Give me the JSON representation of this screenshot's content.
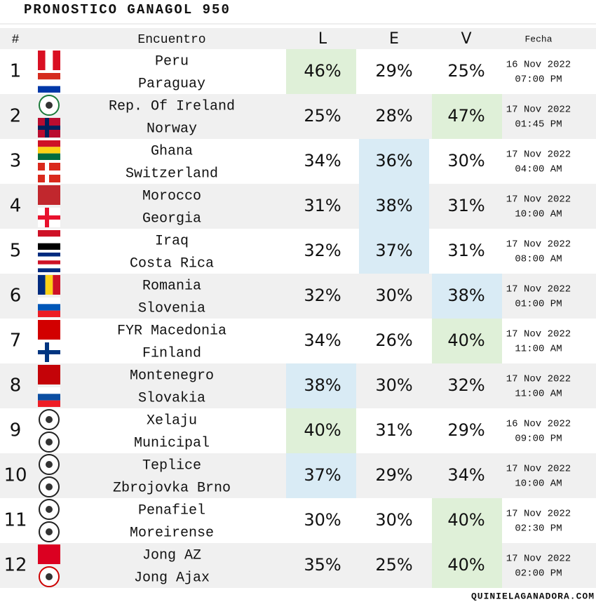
{
  "header": {
    "title": "PRONOSTICO GANAGOL 950"
  },
  "table": {
    "columns": [
      "#",
      "Encuentro",
      "L",
      "E",
      "V",
      "Fecha"
    ],
    "rows": [
      {
        "number": "1",
        "home": "Peru",
        "away": "Paraguay",
        "probs": [
          "46%",
          "29%",
          "25%"
        ],
        "date": "16 Nov 2022",
        "time": "07:00 PM",
        "highlight": {
          "column": 0,
          "color": "#dff0d8"
        }
      },
      {
        "number": "2",
        "home": "Rep. Of Ireland",
        "away": "Norway",
        "probs": [
          "25%",
          "28%",
          "47%"
        ],
        "date": "17 Nov 2022",
        "time": "01:45 PM",
        "highlight": {
          "column": 2,
          "color": "#dff0d8"
        }
      },
      {
        "number": "3",
        "home": "Ghana",
        "away": "Switzerland",
        "probs": [
          "34%",
          "36%",
          "30%"
        ],
        "date": "17 Nov 2022",
        "time": "04:00 AM",
        "highlight": {
          "column": 1,
          "color": "#d9ebf5"
        }
      },
      {
        "number": "4",
        "home": "Morocco",
        "away": "Georgia",
        "probs": [
          "31%",
          "38%",
          "31%"
        ],
        "date": "17 Nov 2022",
        "time": "10:00 AM",
        "highlight": {
          "column": 1,
          "color": "#d9ebf5"
        }
      },
      {
        "number": "5",
        "home": "Iraq",
        "away": "Costa Rica",
        "probs": [
          "32%",
          "37%",
          "31%"
        ],
        "date": "17 Nov 2022",
        "time": "08:00 AM",
        "highlight": {
          "column": 1,
          "color": "#d9ebf5"
        }
      },
      {
        "number": "6",
        "home": "Romania",
        "away": "Slovenia",
        "probs": [
          "32%",
          "30%",
          "38%"
        ],
        "date": "17 Nov 2022",
        "time": "01:00 PM",
        "highlight": {
          "column": 2,
          "color": "#d9ebf5"
        }
      },
      {
        "number": "7",
        "home": "FYR Macedonia",
        "away": "Finland",
        "probs": [
          "34%",
          "26%",
          "40%"
        ],
        "date": "17 Nov 2022",
        "time": "11:00 AM",
        "highlight": {
          "column": 2,
          "color": "#dff0d8"
        }
      },
      {
        "number": "8",
        "home": "Montenegro",
        "away": "Slovakia",
        "probs": [
          "38%",
          "30%",
          "32%"
        ],
        "date": "17 Nov 2022",
        "time": "11:00 AM",
        "highlight": {
          "column": 0,
          "color": "#d9ebf5"
        }
      },
      {
        "number": "9",
        "home": "Xelaju",
        "away": "Municipal",
        "probs": [
          "40%",
          "31%",
          "29%"
        ],
        "date": "16 Nov 2022",
        "time": "09:00 PM",
        "highlight": {
          "column": 0,
          "color": "#dff0d8"
        }
      },
      {
        "number": "10",
        "home": "Teplice",
        "away": "Zbrojovka Brno",
        "probs": [
          "37%",
          "29%",
          "34%"
        ],
        "date": "17 Nov 2022",
        "time": "10:00 AM",
        "highlight": {
          "column": 0,
          "color": "#d9ebf5"
        }
      },
      {
        "number": "11",
        "home": "Penafiel",
        "away": "Moreirense",
        "probs": [
          "30%",
          "30%",
          "40%"
        ],
        "date": "17 Nov 2022",
        "time": "02:30 PM",
        "highlight": {
          "column": 2,
          "color": "#dff0d8"
        }
      },
      {
        "number": "12",
        "home": "Jong AZ",
        "away": "Jong Ajax",
        "probs": [
          "35%",
          "25%",
          "40%"
        ],
        "date": "17 Nov 2022",
        "time": "02:00 PM",
        "highlight": {
          "column": 2,
          "color": "#dff0d8"
        }
      }
    ]
  },
  "footer": {
    "site": "QUINIELAGANADORA.COM"
  }
}
